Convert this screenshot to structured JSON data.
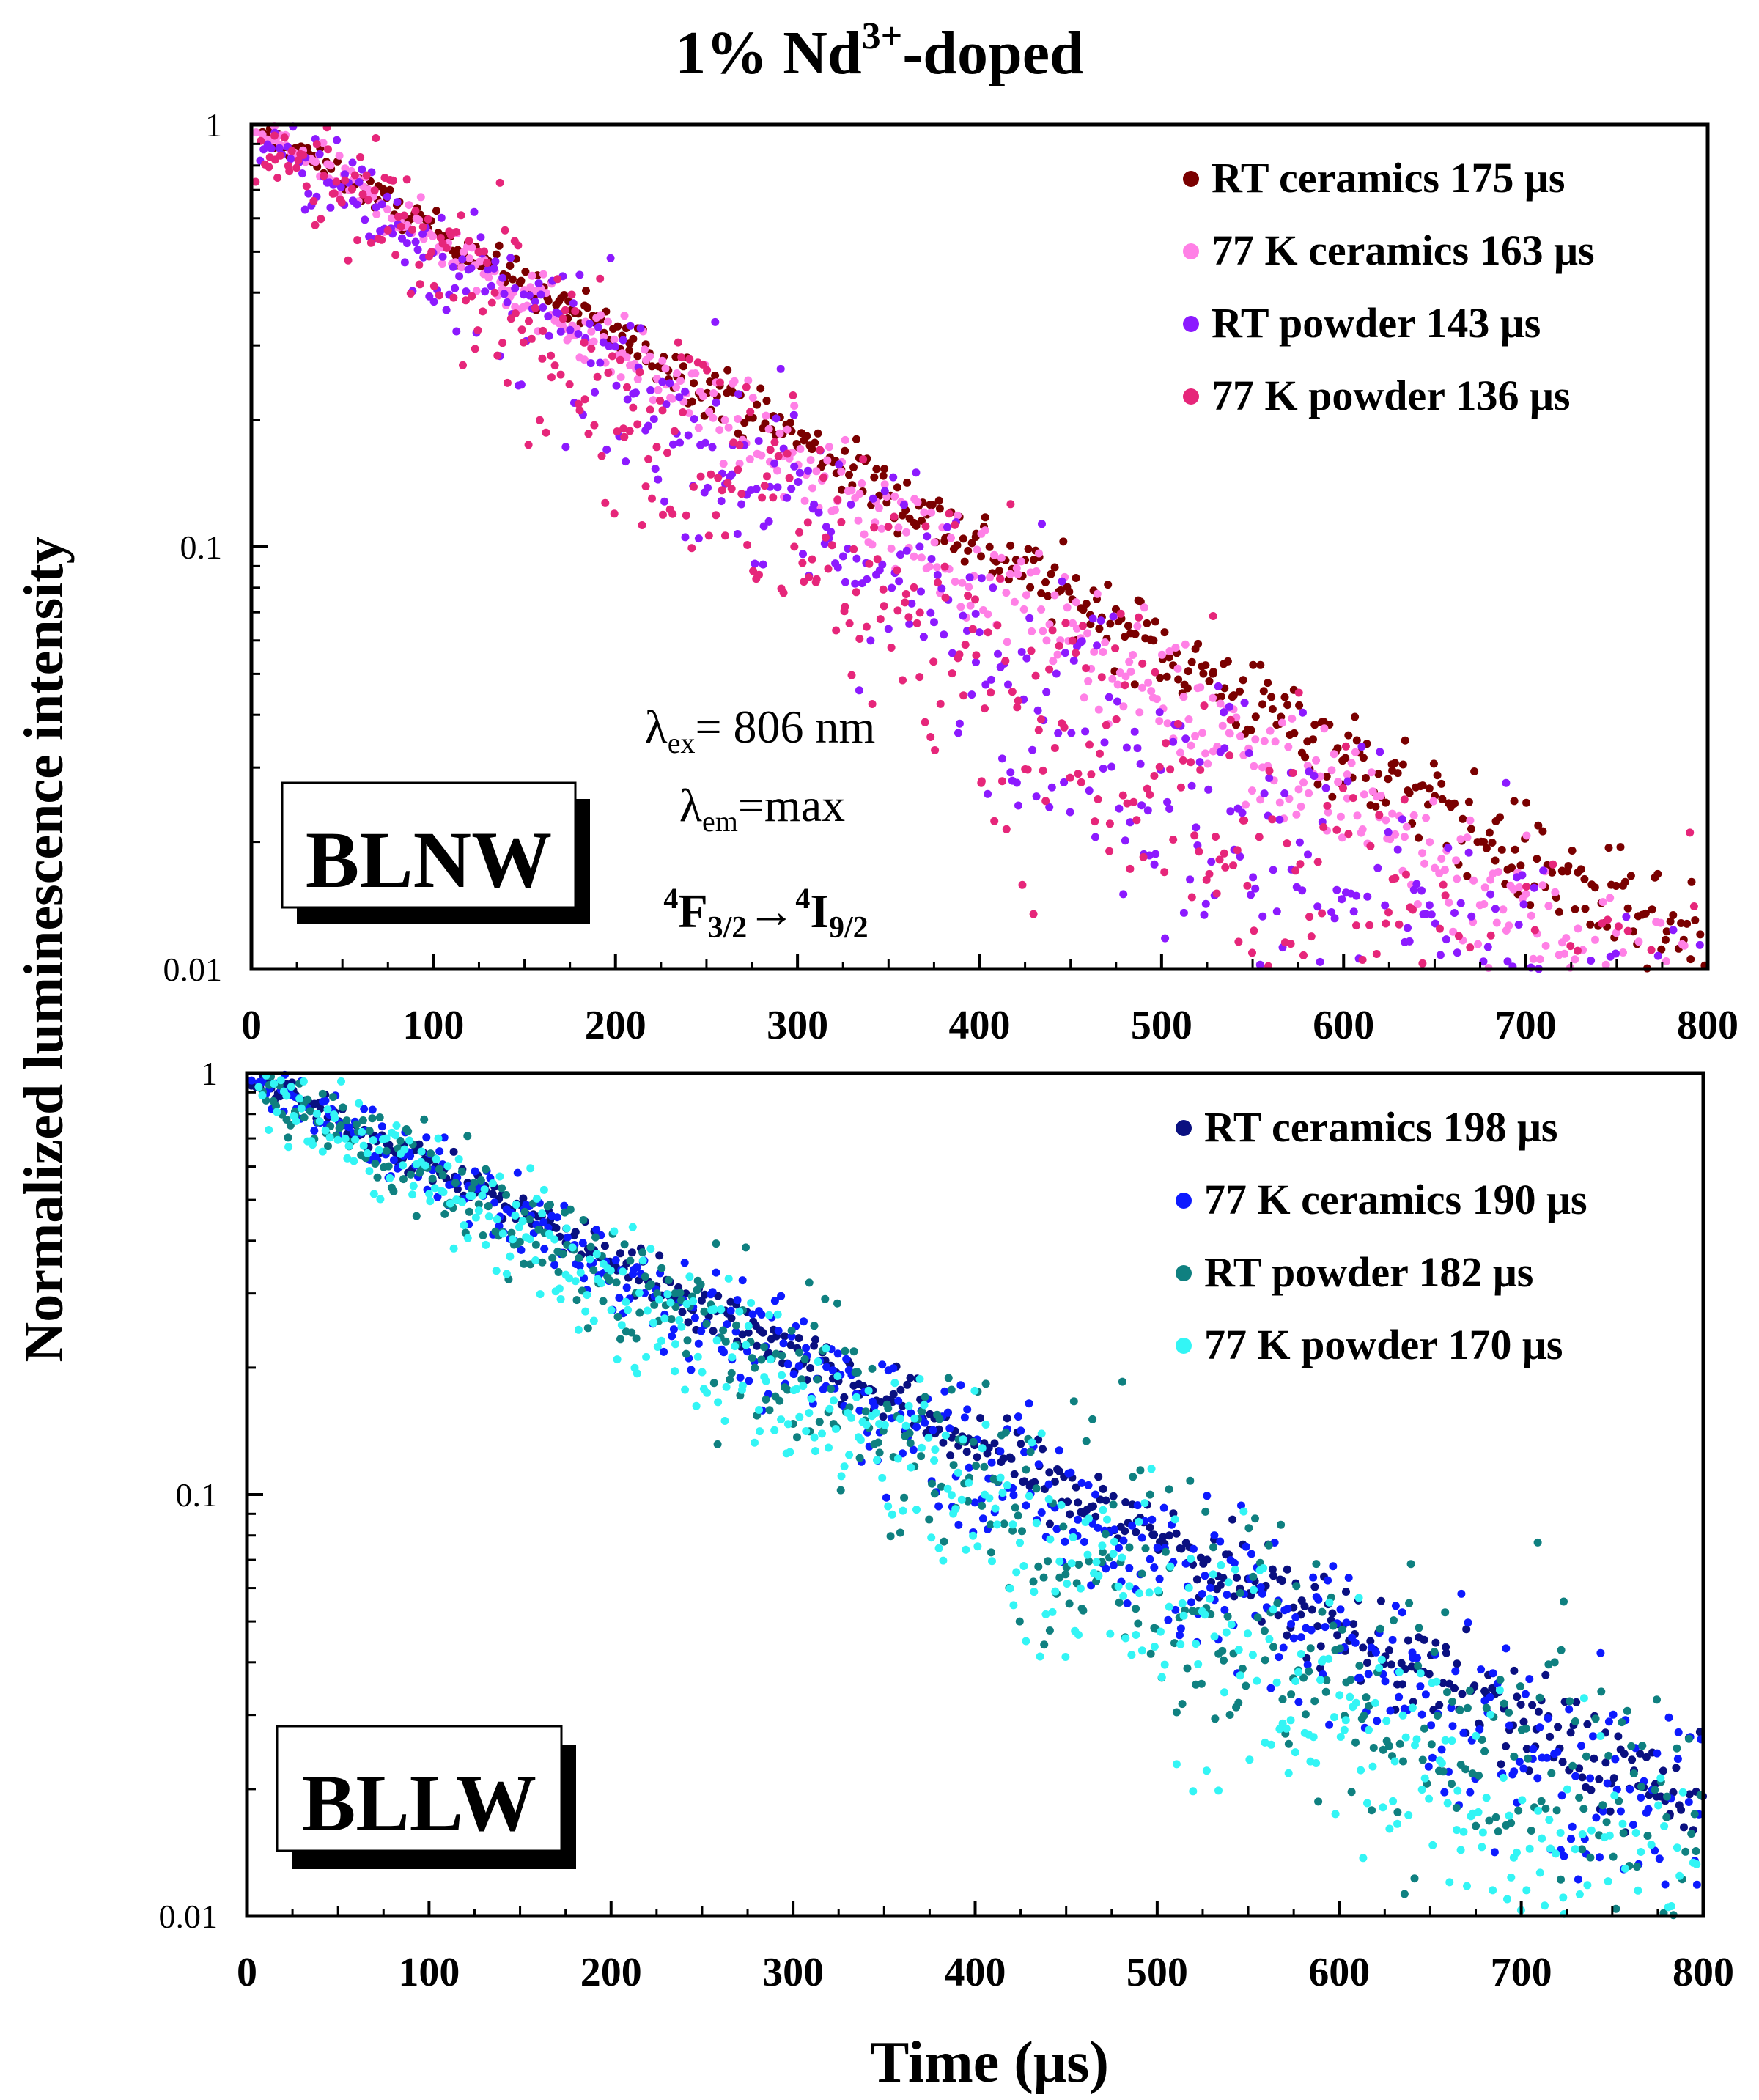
{
  "title": {
    "main": "1% Nd",
    "sup": "3+",
    "rest": "-doped"
  },
  "ylabel": "Normalized luminescence intensity",
  "xlabel": "Time (μs)",
  "annotation": {
    "ex_symbol": "λ",
    "ex_sub": "ex",
    "ex_value": "= 806 nm",
    "em_symbol": "λ",
    "em_sub": "em",
    "em_value": "=max",
    "tr_sup1": "4",
    "tr_f": "F",
    "tr_sub1": "3/2",
    "tr_arrow": "→",
    "tr_sup2": "4",
    "tr_i": "I",
    "tr_sub2": "9/2"
  },
  "chart_data": [
    {
      "type": "scatter",
      "panel": "top",
      "sample_label": "BLNW",
      "xlim": [
        0,
        800
      ],
      "ylim": [
        0.01,
        1
      ],
      "yscale": "log",
      "x_ticks": [
        "0",
        "100",
        "200",
        "300",
        "400",
        "500",
        "600",
        "700",
        "800"
      ],
      "y_ticks": [
        "1",
        "0.1",
        "0.01"
      ],
      "series": [
        {
          "name": "RT ceramics 175 μs",
          "lifetime_us": 175,
          "color": "#7a0000",
          "scatter": 0.02
        },
        {
          "name": "77 K ceramics 163 μs",
          "lifetime_us": 163,
          "color": "#ff80e6",
          "scatter": 0.03
        },
        {
          "name": "RT powder 143 μs",
          "lifetime_us": 143,
          "color": "#8c1aff",
          "scatter": 0.07
        },
        {
          "name": "77 K powder 136 μs",
          "lifetime_us": 136,
          "color": "#e6267a",
          "scatter": 0.09
        }
      ]
    },
    {
      "type": "scatter",
      "panel": "bottom",
      "sample_label": "BLLW",
      "xlim": [
        0,
        800
      ],
      "ylim": [
        0.01,
        1
      ],
      "yscale": "log",
      "x_ticks": [
        "0",
        "100",
        "200",
        "300",
        "400",
        "500",
        "600",
        "700",
        "800"
      ],
      "y_ticks": [
        "1",
        "0.1",
        "0.01"
      ],
      "series": [
        {
          "name": "RT ceramics 198 μs",
          "lifetime_us": 198,
          "color": "#0a1080",
          "scatter": 0.02
        },
        {
          "name": "77 K ceramics 190 μs",
          "lifetime_us": 190,
          "color": "#0d1aff",
          "scatter": 0.04
        },
        {
          "name": "RT powder 182 μs",
          "lifetime_us": 182,
          "color": "#0f8080",
          "scatter": 0.06
        },
        {
          "name": "77 K powder 170 μs",
          "lifetime_us": 170,
          "color": "#33f5f5",
          "scatter": 0.06
        }
      ]
    }
  ]
}
